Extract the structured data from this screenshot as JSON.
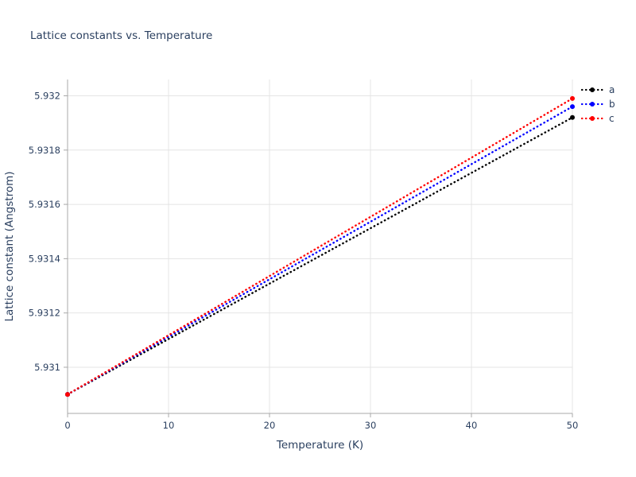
{
  "page": {
    "title": "Lattice constants vs. Temperature"
  },
  "colors": {
    "text": "#2a3f5f",
    "grid": "#e4e4e4",
    "axis": "#a8a8a8",
    "background": "#ffffff"
  },
  "chart_data": {
    "type": "line",
    "title": "Lattice constants vs. Temperature",
    "xlabel": "Temperature (K)",
    "ylabel": "Lattice constant (Angstrom)",
    "xlim": [
      0,
      50
    ],
    "ylim": [
      5.93083,
      5.93206
    ],
    "x_ticks": [
      0,
      10,
      20,
      30,
      40,
      50
    ],
    "x_tick_labels": [
      "0",
      "10",
      "20",
      "30",
      "40",
      "50"
    ],
    "y_ticks": [
      5.931,
      5.9312,
      5.9314,
      5.9316,
      5.9318,
      5.932
    ],
    "y_tick_labels": [
      "5.931",
      "5.9312",
      "5.9314",
      "5.9316",
      "5.9318",
      "5.932"
    ],
    "grid": true,
    "legend": {
      "position": "top-right-outside",
      "entries": [
        "a",
        "b",
        "c"
      ]
    },
    "series": [
      {
        "name": "a",
        "color": "#000000",
        "line_style": "dotted",
        "marker": "circle",
        "x": [
          0,
          50
        ],
        "y": [
          5.9309,
          5.93192
        ]
      },
      {
        "name": "b",
        "color": "#0000ff",
        "line_style": "dotted",
        "marker": "circle",
        "x": [
          0,
          50
        ],
        "y": [
          5.9309,
          5.93196
        ]
      },
      {
        "name": "c",
        "color": "#ff0000",
        "line_style": "dotted",
        "marker": "circle",
        "x": [
          0,
          50
        ],
        "y": [
          5.9309,
          5.93199
        ]
      }
    ]
  }
}
